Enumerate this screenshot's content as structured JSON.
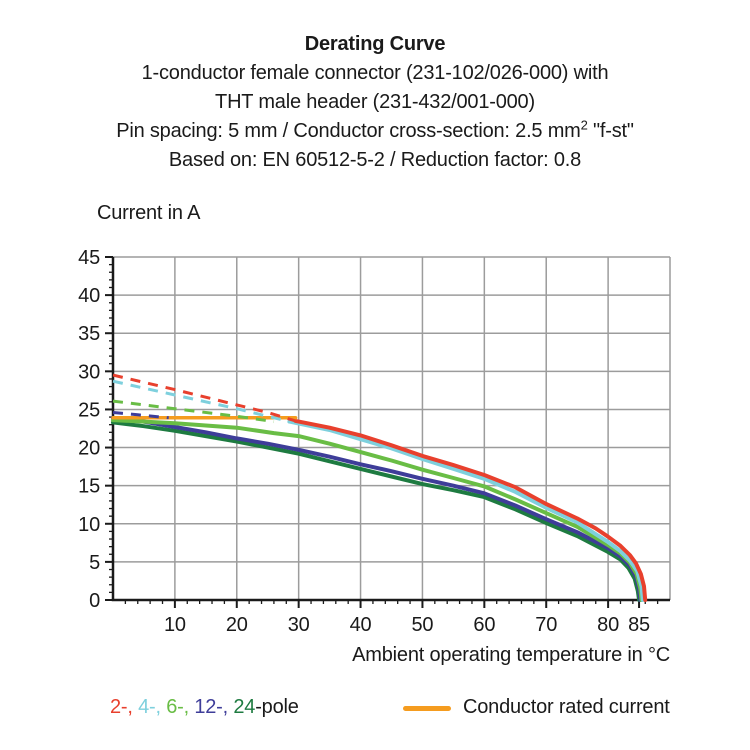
{
  "title": {
    "main": "Derating Curve",
    "subtitle1": "1-conductor female connector (231-102/026-000) with",
    "subtitle2": "THT male header (231-432/001-000)",
    "subtitle3a": "Pin spacing: 5 mm / Conductor cross-section: 2.5 mm",
    "subtitle3_sup": "2",
    "subtitle3b": " \"f-st\"",
    "subtitle4": "Based on: EN 60512-5-2 / Reduction factor: 0.8"
  },
  "y_axis_title": "Current in A",
  "x_axis_title": "Ambient operating temperature in °C",
  "legend": {
    "poles": [
      {
        "label": "2-, ",
        "color": "#e8402d"
      },
      {
        "label": "4-, ",
        "color": "#7ed0dd"
      },
      {
        "label": "6-, ",
        "color": "#69bd45"
      },
      {
        "label": "12-, ",
        "color": "#3e3d99"
      },
      {
        "label": "24",
        "color": "#1e7b41"
      },
      {
        "label": "-pole",
        "color": "#1a1a1a"
      }
    ],
    "rated_label": "Conductor rated current",
    "rated_color": "#f59c1f"
  },
  "colors": {
    "grid": "#9c9c9c",
    "axis": "#1a1a1a",
    "pole2": "#e8402d",
    "pole4": "#7ed0dd",
    "pole6": "#69bd45",
    "pole12": "#3e3d99",
    "pole24": "#1e7b41",
    "rated": "#f59c1f"
  },
  "chart_data": {
    "type": "line",
    "title": "Derating Curve",
    "xlabel": "Ambient operating temperature in °C",
    "ylabel": "Current in A",
    "xlim": [
      0,
      90
    ],
    "ylim": [
      0,
      45
    ],
    "yticks": [
      0,
      5,
      10,
      15,
      20,
      25,
      30,
      35,
      40,
      45
    ],
    "xticks_major": [
      10,
      20,
      30,
      40,
      50,
      60,
      70,
      80,
      85
    ],
    "x_minor_step": 2,
    "y_minor_step": 1,
    "grid_x": [
      10,
      20,
      30,
      40,
      50,
      60,
      70,
      80,
      90
    ],
    "grid_y": [
      5,
      10,
      15,
      20,
      25,
      30,
      35,
      40,
      45
    ],
    "grid_on": true,
    "legend_position": "bottom",
    "series": [
      {
        "name": "24-pole",
        "color": "#1e7b41",
        "style": "solid",
        "width": 4,
        "points": [
          [
            0,
            23.3
          ],
          [
            5,
            22.8
          ],
          [
            10,
            22.2
          ],
          [
            15,
            21.5
          ],
          [
            20,
            20.8
          ],
          [
            25,
            20.0
          ],
          [
            30,
            19.2
          ],
          [
            35,
            18.2
          ],
          [
            40,
            17.2
          ],
          [
            45,
            16.2
          ],
          [
            50,
            15.2
          ],
          [
            55,
            14.4
          ],
          [
            60,
            13.5
          ],
          [
            65,
            11.9
          ],
          [
            70,
            10.1
          ],
          [
            75,
            8.4
          ],
          [
            80,
            6.3
          ],
          [
            82,
            5.3
          ],
          [
            83.3,
            4.2
          ],
          [
            84.3,
            2.8
          ],
          [
            84.8,
            1.2
          ],
          [
            85,
            0
          ]
        ]
      },
      {
        "name": "12-pole",
        "color": "#3e3d99",
        "style": "solid",
        "width": 4,
        "points": [
          [
            0,
            23.9
          ],
          [
            5,
            23.4
          ],
          [
            10,
            22.7
          ],
          [
            15,
            22.0
          ],
          [
            20,
            21.2
          ],
          [
            25,
            20.5
          ],
          [
            30,
            19.7
          ],
          [
            35,
            18.8
          ],
          [
            40,
            17.8
          ],
          [
            45,
            16.9
          ],
          [
            50,
            15.9
          ],
          [
            55,
            15.0
          ],
          [
            60,
            14.0
          ],
          [
            65,
            12.4
          ],
          [
            70,
            10.6
          ],
          [
            75,
            8.9
          ],
          [
            80,
            6.8
          ],
          [
            82,
            5.7
          ],
          [
            83.5,
            4.5
          ],
          [
            84.5,
            3.1
          ],
          [
            85,
            1.5
          ],
          [
            85.2,
            0
          ]
        ]
      },
      {
        "name": "6-pole",
        "color": "#69bd45",
        "style": "solid",
        "width": 4,
        "points": [
          [
            0,
            23.6
          ],
          [
            10,
            23.2
          ],
          [
            20,
            22.6
          ],
          [
            26,
            21.9
          ],
          [
            30,
            21.5
          ],
          [
            35,
            20.5
          ],
          [
            40,
            19.4
          ],
          [
            45,
            18.3
          ],
          [
            50,
            17.1
          ],
          [
            55,
            16.0
          ],
          [
            60,
            14.9
          ],
          [
            65,
            13.2
          ],
          [
            70,
            11.4
          ],
          [
            75,
            9.6
          ],
          [
            80,
            7.2
          ],
          [
            82,
            6.1
          ],
          [
            83.5,
            4.9
          ],
          [
            84.6,
            3.4
          ],
          [
            85.2,
            1.5
          ],
          [
            85.4,
            0
          ]
        ]
      },
      {
        "name": "4-pole",
        "color": "#7ed0dd",
        "style": "solid",
        "width": 4,
        "points": [
          [
            28.5,
            23.4
          ],
          [
            35,
            22.3
          ],
          [
            40,
            21.1
          ],
          [
            45,
            19.9
          ],
          [
            50,
            18.5
          ],
          [
            55,
            17.2
          ],
          [
            60,
            15.9
          ],
          [
            65,
            14.2
          ],
          [
            70,
            12.1
          ],
          [
            75,
            10.2
          ],
          [
            80,
            7.6
          ],
          [
            82,
            6.4
          ],
          [
            83.5,
            5.2
          ],
          [
            84.7,
            3.8
          ],
          [
            85.4,
            1.8
          ],
          [
            85.6,
            0
          ]
        ]
      },
      {
        "name": "2-pole",
        "color": "#e8402d",
        "style": "solid",
        "width": 4,
        "points": [
          [
            29.5,
            23.5
          ],
          [
            35,
            22.6
          ],
          [
            40,
            21.6
          ],
          [
            45,
            20.3
          ],
          [
            50,
            18.9
          ],
          [
            55,
            17.7
          ],
          [
            60,
            16.4
          ],
          [
            65,
            14.8
          ],
          [
            70,
            12.6
          ],
          [
            75,
            10.7
          ],
          [
            78,
            9.4
          ],
          [
            80,
            8.3
          ],
          [
            82,
            7.1
          ],
          [
            83.5,
            5.9
          ],
          [
            84.5,
            4.8
          ],
          [
            85.3,
            3.4
          ],
          [
            85.8,
            1.8
          ],
          [
            86,
            0
          ]
        ]
      },
      {
        "name": "Conductor rated current",
        "color": "#f59c1f",
        "style": "solid",
        "width": 3.5,
        "points": [
          [
            0,
            23.9
          ],
          [
            29.5,
            23.9
          ]
        ]
      },
      {
        "name": "12-pole unrestricted",
        "color": "#3e3d99",
        "style": "dashed",
        "width": 3,
        "points": [
          [
            0,
            24.6
          ],
          [
            4,
            24.3
          ],
          [
            9,
            23.9
          ]
        ]
      },
      {
        "name": "6-pole unrestricted",
        "color": "#69bd45",
        "style": "dashed",
        "width": 3,
        "points": [
          [
            0,
            26.1
          ],
          [
            10,
            25.1
          ],
          [
            20,
            24.1
          ],
          [
            26,
            23.4
          ]
        ]
      },
      {
        "name": "4-pole unrestricted",
        "color": "#7ed0dd",
        "style": "dashed",
        "width": 3,
        "points": [
          [
            0,
            28.7
          ],
          [
            10,
            26.9
          ],
          [
            20,
            25.1
          ],
          [
            28.5,
            23.4
          ]
        ]
      },
      {
        "name": "2-pole unrestricted",
        "color": "#e8402d",
        "style": "dashed",
        "width": 3,
        "points": [
          [
            0,
            29.5
          ],
          [
            10,
            27.6
          ],
          [
            20,
            25.6
          ],
          [
            25,
            24.6
          ],
          [
            29.5,
            23.5
          ]
        ]
      }
    ]
  }
}
